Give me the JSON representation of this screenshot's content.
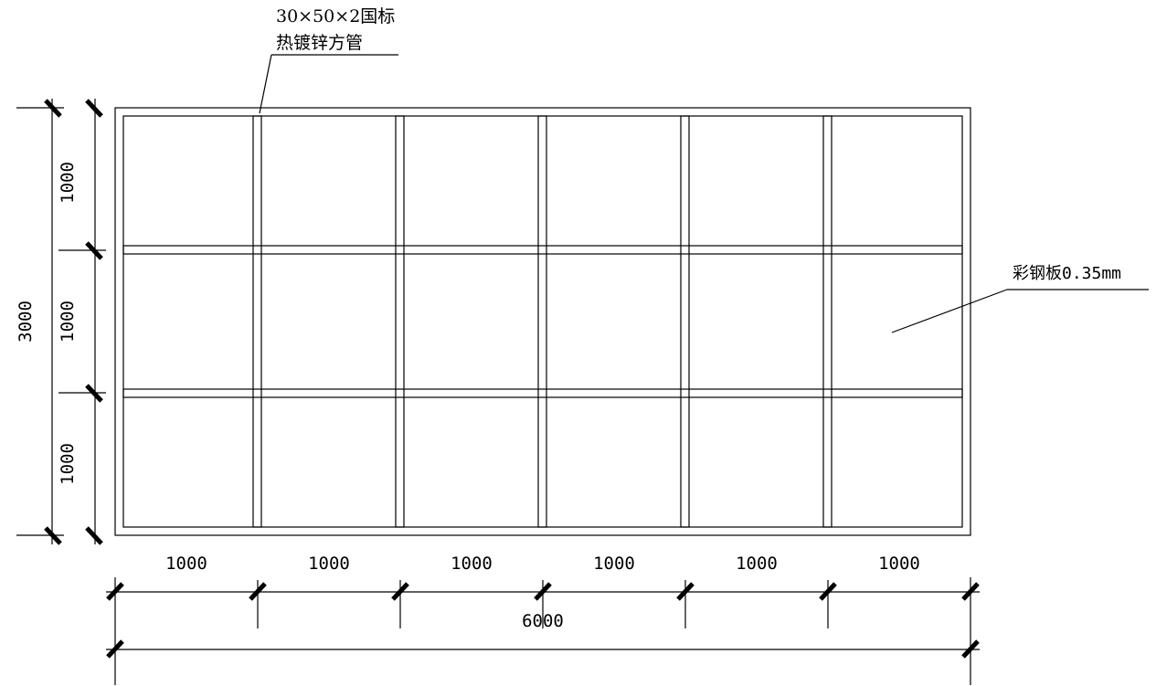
{
  "annotations": {
    "tube_spec_line1": "30×50×2国标",
    "tube_spec_line2": "热镀锌方管",
    "panel_spec": "彩钢板0.35mm"
  },
  "dimensions": {
    "column_widths": [
      "1000",
      "1000",
      "1000",
      "1000",
      "1000",
      "1000"
    ],
    "row_heights": [
      "1000",
      "1000",
      "1000"
    ],
    "total_width": "6000",
    "total_height": "3000"
  }
}
